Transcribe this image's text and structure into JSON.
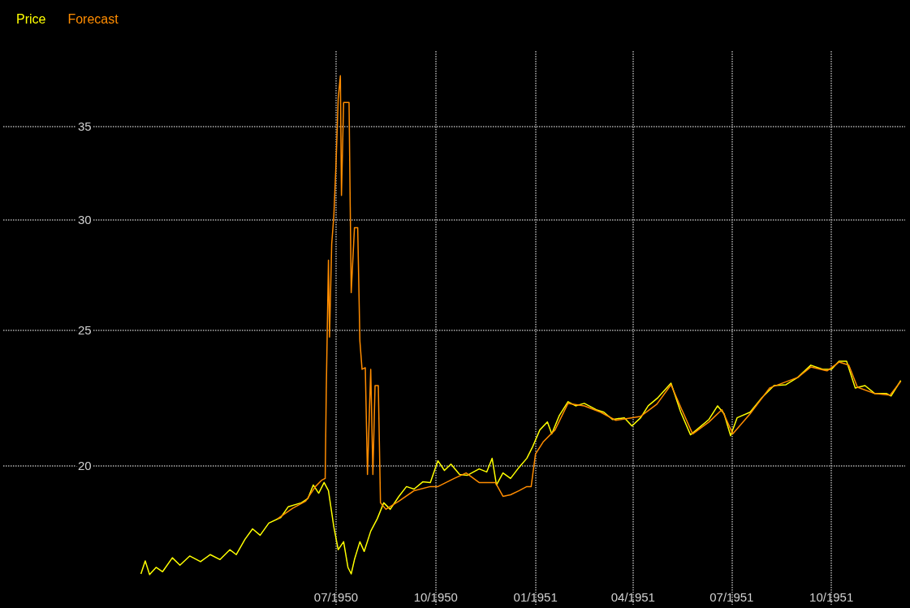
{
  "chart_data": {
    "type": "line",
    "log": "y",
    "grid": true,
    "legend": "top left",
    "xlim": [
      "1949-08-28",
      "1951-12-08"
    ],
    "xticks": [
      {
        "value": "1950-07-01",
        "label": "07/1950"
      },
      {
        "value": "1950-10-01",
        "label": "10/1950"
      },
      {
        "value": "1951-01-01",
        "label": "01/1951"
      },
      {
        "value": "1951-04-01",
        "label": "04/1951"
      },
      {
        "value": "1951-07-01",
        "label": "07/1951"
      },
      {
        "value": "1951-10-01",
        "label": "10/1951"
      }
    ],
    "ylim": [
      15.9,
      39.6
    ],
    "yticks": [
      20,
      25,
      30,
      35
    ],
    "series": [
      {
        "name": "Price",
        "color": "#ffff00",
        "x": [
          "1950-01-02",
          "1950-01-06",
          "1950-01-10",
          "1950-01-16",
          "1950-01-22",
          "1950-01-31",
          "1950-02-07",
          "1950-02-16",
          "1950-02-26",
          "1950-03-07",
          "1950-03-16",
          "1950-03-25",
          "1950-03-31",
          "1950-04-08",
          "1950-04-15",
          "1950-04-22",
          "1950-04-30",
          "1950-05-11",
          "1950-05-18",
          "1950-05-30",
          "1950-06-05",
          "1950-06-10",
          "1950-06-15",
          "1950-06-20",
          "1950-06-24",
          "1950-06-29",
          "1950-07-03",
          "1950-07-08",
          "1950-07-12",
          "1950-07-15",
          "1950-07-18",
          "1950-07-23",
          "1950-07-27",
          "1950-08-02",
          "1950-08-08",
          "1950-08-14",
          "1950-08-20",
          "1950-08-28",
          "1950-09-04",
          "1950-09-11",
          "1950-09-19",
          "1950-09-26",
          "1950-10-03",
          "1950-10-09",
          "1950-10-15",
          "1950-10-23",
          "1950-10-30",
          "1950-11-10",
          "1950-11-17",
          "1950-11-22",
          "1950-11-26",
          "1950-12-02",
          "1950-12-09",
          "1950-12-17",
          "1950-12-24",
          "1950-12-29",
          "1951-01-05",
          "1951-01-12",
          "1951-01-16",
          "1951-01-23",
          "1951-01-31",
          "1951-02-07",
          "1951-02-15",
          "1951-02-26",
          "1951-03-05",
          "1951-03-13",
          "1951-03-24",
          "1951-03-31",
          "1951-04-08",
          "1951-04-15",
          "1951-04-24",
          "1951-05-06",
          "1951-05-15",
          "1951-05-24",
          "1951-06-01",
          "1951-06-10",
          "1951-06-18",
          "1951-06-24",
          "1951-06-30",
          "1951-07-06",
          "1951-07-18",
          "1951-07-29",
          "1951-08-09",
          "1951-08-20",
          "1951-08-31",
          "1951-09-12",
          "1951-09-23",
          "1951-10-01",
          "1951-10-08",
          "1951-10-15",
          "1951-10-23",
          "1951-11-01",
          "1951-11-10",
          "1951-11-21",
          "1951-11-25",
          "1951-12-04"
        ],
        "values": [
          16.73,
          17.09,
          16.71,
          16.91,
          16.79,
          17.18,
          16.97,
          17.23,
          17.07,
          17.27,
          17.13,
          17.41,
          17.27,
          17.71,
          18.02,
          17.83,
          18.19,
          18.36,
          18.69,
          18.81,
          18.94,
          19.37,
          19.11,
          19.45,
          19.19,
          18.07,
          17.41,
          17.64,
          16.91,
          16.73,
          17.13,
          17.64,
          17.36,
          17.95,
          18.32,
          18.81,
          18.61,
          19.01,
          19.32,
          19.24,
          19.47,
          19.45,
          20.16,
          19.84,
          20.05,
          19.71,
          19.68,
          19.89,
          19.79,
          20.24,
          19.37,
          19.76,
          19.58,
          19.95,
          20.24,
          20.6,
          21.21,
          21.49,
          21.07,
          21.72,
          22.22,
          22.07,
          22.16,
          21.93,
          21.84,
          21.58,
          21.64,
          21.35,
          21.64,
          22.07,
          22.37,
          22.91,
          21.84,
          21.04,
          21.29,
          21.58,
          22.07,
          21.78,
          21.01,
          21.64,
          21.84,
          22.37,
          22.82,
          22.85,
          23.13,
          23.6,
          23.44,
          23.44,
          23.75,
          23.75,
          22.73,
          22.82,
          22.52,
          22.52,
          22.43,
          23.01
        ]
      },
      {
        "name": "Forecast",
        "color": "#ff8c00",
        "x": [
          "1950-05-08",
          "1950-05-22",
          "1950-06-03",
          "1950-06-12",
          "1950-06-18",
          "1950-06-21",
          "1950-06-22",
          "1950-06-24",
          "1950-06-25",
          "1950-06-27",
          "1950-06-29",
          "1950-07-01",
          "1950-07-03",
          "1950-07-05",
          "1950-07-06",
          "1950-07-08",
          "1950-07-13",
          "1950-07-15",
          "1950-07-18",
          "1950-07-21",
          "1950-07-23",
          "1950-07-25",
          "1950-07-28",
          "1950-07-30",
          "1950-08-02",
          "1950-08-04",
          "1950-08-06",
          "1950-08-09",
          "1950-08-11",
          "1950-08-16",
          "1950-08-28",
          "1950-09-11",
          "1950-09-26",
          "1950-10-03",
          "1950-10-18",
          "1950-10-29",
          "1950-11-10",
          "1950-11-25",
          "1950-12-02",
          "1950-12-09",
          "1950-12-17",
          "1950-12-24",
          "1950-12-28",
          "1951-01-01",
          "1951-01-08",
          "1951-01-19",
          "1951-01-31",
          "1951-02-15",
          "1951-03-02",
          "1951-03-16",
          "1951-04-08",
          "1951-04-23",
          "1951-05-06",
          "1951-05-16",
          "1951-05-26",
          "1951-06-10",
          "1951-06-22",
          "1951-07-02",
          "1951-07-18",
          "1951-08-05",
          "1951-08-31",
          "1951-09-12",
          "1951-09-27",
          "1951-10-08",
          "1951-10-17",
          "1951-10-25",
          "1951-11-10",
          "1951-11-24",
          "1951-12-04"
        ],
        "values": [
          18.32,
          18.64,
          18.86,
          19.32,
          19.53,
          19.58,
          22.67,
          28.06,
          24.72,
          28.82,
          30.2,
          32.93,
          36.64,
          38.03,
          31.22,
          36.39,
          36.39,
          26.6,
          29.6,
          29.6,
          24.56,
          23.44,
          23.5,
          19.71,
          23.44,
          19.71,
          22.82,
          22.82,
          18.81,
          18.61,
          18.86,
          19.19,
          19.32,
          19.32,
          19.58,
          19.76,
          19.45,
          19.45,
          19.01,
          19.06,
          19.19,
          19.32,
          19.32,
          20.38,
          20.79,
          21.21,
          22.16,
          22.07,
          21.84,
          21.55,
          21.69,
          22.13,
          22.85,
          21.93,
          21.07,
          21.49,
          21.93,
          21.07,
          21.78,
          22.73,
          23.13,
          23.53,
          23.38,
          23.72,
          23.6,
          22.76,
          22.52,
          22.46,
          22.98
        ]
      }
    ]
  }
}
